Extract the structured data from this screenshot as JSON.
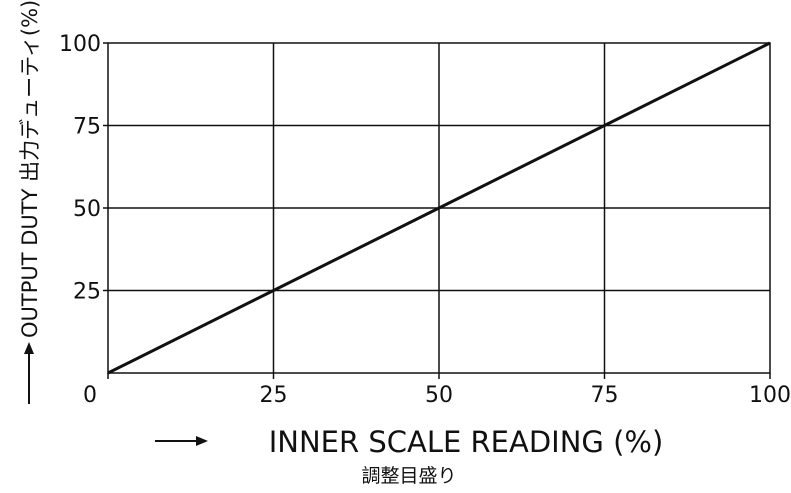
{
  "chart_data": {
    "type": "line",
    "x": [
      0,
      25,
      50,
      75,
      100
    ],
    "series": [
      {
        "values": [
          0,
          25,
          50,
          75,
          100
        ]
      }
    ],
    "xlabel": "INNER SCALE READING (%)",
    "xlabel_jp": "調整目盛り",
    "ylabel": "OUTPUT DUTY 出力デューティ(%)",
    "xlim": [
      0,
      100
    ],
    "ylim": [
      0,
      100
    ],
    "xticks": [
      0,
      25,
      50,
      75,
      100
    ],
    "yticks": [
      25,
      50,
      75,
      100
    ],
    "origin_label": "0",
    "grid": true,
    "arrow_glyph": "⟶",
    "colors": {
      "line": "#111111",
      "grid": "#111111",
      "background": "#ffffff"
    }
  }
}
